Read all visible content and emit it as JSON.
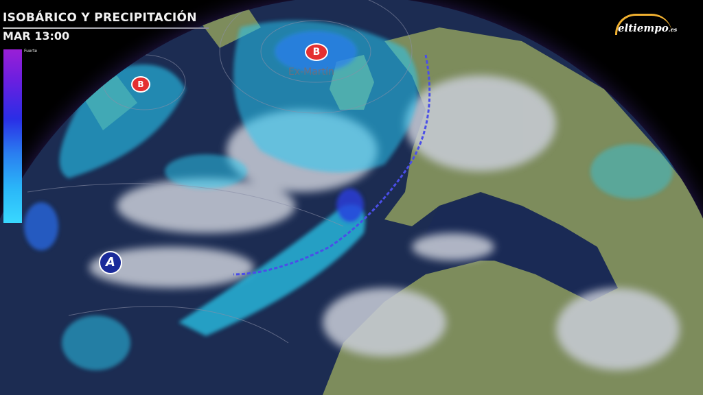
{
  "header": {
    "title": "ISOBÁRICO Y PRECIPITACIÓN",
    "time": "MAR 13:00"
  },
  "legend": {
    "top_label": "Fuerte",
    "colors": [
      "#9a1fd6",
      "#2a2ee6",
      "#39d8ff"
    ]
  },
  "logo": {
    "text": "eltiempo",
    "suffix": ".es"
  },
  "pressure_systems": [
    {
      "type": "low",
      "label": "B",
      "name": "Ex-Martín"
    },
    {
      "type": "low",
      "label": "B"
    },
    {
      "type": "high",
      "label": "A"
    }
  ],
  "colors": {
    "ocean": "#1a2a50",
    "land": "#7a8a5a",
    "cloud": "#c8ccd8",
    "precipitation": "#2ad0f5",
    "front": "#5050e0",
    "low": "#e43030",
    "high": "#1a2a9a"
  }
}
